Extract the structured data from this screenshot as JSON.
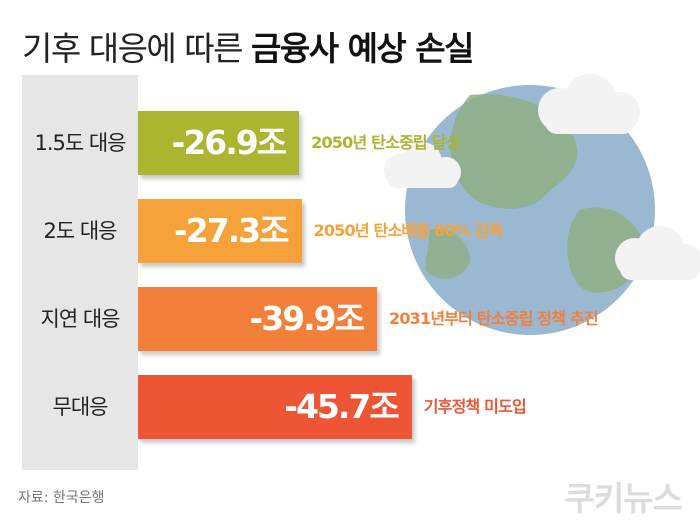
{
  "title": {
    "light": "기후 대응에 따른 ",
    "bold": "금융사 예상 손실"
  },
  "source": "자료: 한국은행",
  "brand": "쿠키뉴스",
  "colors": {
    "background": "#ffffff",
    "panel": "#e6e6e6",
    "bars": [
      "#abb530",
      "#f6a23a",
      "#f27f3a",
      "#ee5534"
    ]
  },
  "chart_data": {
    "type": "bar",
    "orientation": "horizontal",
    "categories": [
      "1.5도 대응",
      "2도 대응",
      "지연 대응",
      "무대응"
    ],
    "values": [
      -26.9,
      -27.3,
      -39.9,
      -45.7
    ],
    "value_labels": [
      "-26.9조",
      "-27.3조",
      "-39.9조",
      "-45.7조"
    ],
    "annotations": [
      "2050년 탄소중립 달성",
      "2050년 탄소배출 80% 감축",
      "2031년부터 탄소중립 정책 추진",
      "기후정책 미도입"
    ],
    "title": "기후 대응에 따른 금융사 예상 손실"
  }
}
